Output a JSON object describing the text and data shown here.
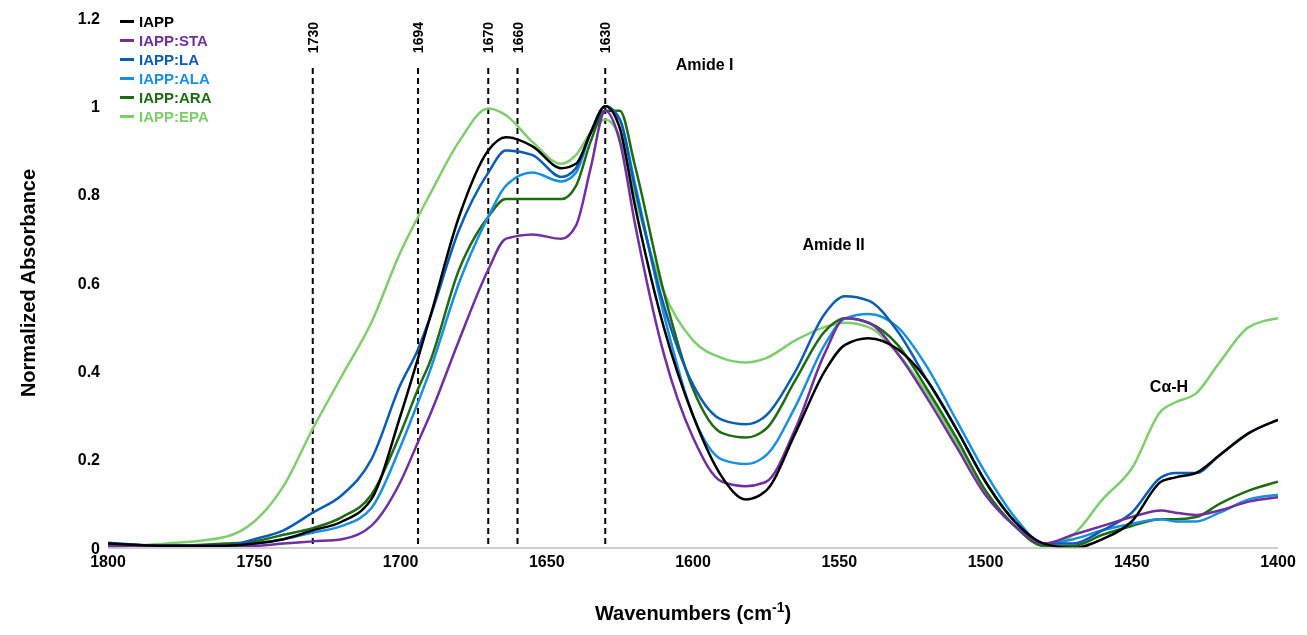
{
  "chart_data": {
    "type": "line",
    "xlabel": "Wavenumbers (cm$^{-1}$)",
    "ylabel": "Normalized Absorbance",
    "x": [
      1800,
      1780,
      1760,
      1750,
      1740,
      1730,
      1720,
      1710,
      1700,
      1694,
      1690,
      1680,
      1670,
      1664,
      1655,
      1645,
      1640,
      1635,
      1630,
      1625,
      1620,
      1610,
      1600,
      1590,
      1582,
      1575,
      1565,
      1555,
      1548,
      1540,
      1530,
      1520,
      1510,
      1500,
      1490,
      1480,
      1470,
      1460,
      1450,
      1440,
      1435,
      1428,
      1420,
      1410,
      1400
    ],
    "series": [
      {
        "name": "IAPP",
        "color": "#000000",
        "values": [
          0.01,
          0.005,
          0.005,
          0.01,
          0.02,
          0.04,
          0.06,
          0.11,
          0.3,
          0.43,
          0.52,
          0.75,
          0.9,
          0.93,
          0.91,
          0.86,
          0.87,
          0.94,
          1.0,
          0.95,
          0.78,
          0.5,
          0.3,
          0.16,
          0.11,
          0.13,
          0.26,
          0.4,
          0.46,
          0.475,
          0.45,
          0.38,
          0.27,
          0.15,
          0.06,
          0.01,
          0,
          0.02,
          0.06,
          0.15,
          0.16,
          0.17,
          0.21,
          0.26,
          0.29
        ]
      },
      {
        "name": "IAPP:STA",
        "color": "#7030a0",
        "values": [
          0.005,
          0.005,
          0.005,
          0.005,
          0.01,
          0.015,
          0.02,
          0.05,
          0.15,
          0.24,
          0.3,
          0.47,
          0.63,
          0.7,
          0.71,
          0.7,
          0.73,
          0.86,
          0.99,
          0.92,
          0.74,
          0.44,
          0.25,
          0.15,
          0.14,
          0.15,
          0.27,
          0.44,
          0.52,
          0.51,
          0.44,
          0.34,
          0.23,
          0.12,
          0.05,
          0.01,
          0.03,
          0.05,
          0.07,
          0.085,
          0.08,
          0.075,
          0.085,
          0.105,
          0.115
        ]
      },
      {
        "name": "IAPP:LA",
        "color": "#0b5cb5",
        "values": [
          0.012,
          0.005,
          0.005,
          0.02,
          0.04,
          0.08,
          0.12,
          0.2,
          0.37,
          0.45,
          0.52,
          0.72,
          0.85,
          0.9,
          0.89,
          0.84,
          0.86,
          0.94,
          1.0,
          0.97,
          0.82,
          0.55,
          0.37,
          0.29,
          0.28,
          0.3,
          0.4,
          0.53,
          0.57,
          0.56,
          0.49,
          0.38,
          0.27,
          0.15,
          0.06,
          0.01,
          0.01,
          0.04,
          0.08,
          0.16,
          0.17,
          0.17,
          0.21,
          0.26,
          0.29
        ]
      },
      {
        "name": "IAPP:ALA",
        "color": "#1a8fe0",
        "values": [
          0.01,
          0.005,
          0.005,
          0.01,
          0.02,
          0.035,
          0.05,
          0.09,
          0.23,
          0.33,
          0.4,
          0.6,
          0.75,
          0.82,
          0.85,
          0.83,
          0.85,
          0.94,
          1.0,
          0.97,
          0.83,
          0.53,
          0.3,
          0.2,
          0.19,
          0.21,
          0.32,
          0.46,
          0.52,
          0.53,
          0.5,
          0.41,
          0.29,
          0.17,
          0.07,
          0.01,
          0.02,
          0.04,
          0.055,
          0.065,
          0.06,
          0.06,
          0.08,
          0.11,
          0.12
        ]
      },
      {
        "name": "IAPP:ARA",
        "color": "#1e6b14",
        "values": [
          0.005,
          0.005,
          0.01,
          0.015,
          0.03,
          0.045,
          0.07,
          0.12,
          0.26,
          0.36,
          0.42,
          0.63,
          0.75,
          0.79,
          0.79,
          0.79,
          0.82,
          0.92,
          0.99,
          0.99,
          0.87,
          0.58,
          0.36,
          0.26,
          0.25,
          0.27,
          0.38,
          0.49,
          0.52,
          0.51,
          0.46,
          0.36,
          0.25,
          0.13,
          0.05,
          0.005,
          0.005,
          0.03,
          0.05,
          0.065,
          0.065,
          0.07,
          0.1,
          0.13,
          0.15
        ]
      },
      {
        "name": "IAPP:EPA",
        "color": "#7ccf6a",
        "values": [
          0.002,
          0.01,
          0.025,
          0.06,
          0.14,
          0.27,
          0.39,
          0.51,
          0.67,
          0.75,
          0.8,
          0.92,
          0.995,
          0.98,
          0.92,
          0.87,
          0.89,
          0.94,
          0.97,
          0.93,
          0.8,
          0.58,
          0.47,
          0.43,
          0.42,
          0.43,
          0.47,
          0.5,
          0.51,
          0.5,
          0.44,
          0.35,
          0.24,
          0.13,
          0.05,
          0.005,
          0.03,
          0.11,
          0.18,
          0.31,
          0.33,
          0.35,
          0.42,
          0.5,
          0.52
        ]
      }
    ],
    "xlim": [
      1800,
      1400
    ],
    "xticks": [
      1800,
      1750,
      1700,
      1650,
      1600,
      1550,
      1500,
      1450,
      1400
    ],
    "ylim": [
      0,
      1.2
    ],
    "yticks": [
      0,
      0.2,
      0.4,
      0.6,
      0.8,
      1,
      1.2
    ],
    "ref_lines": [
      {
        "axis": "x",
        "value": 1730,
        "label": "1730",
        "color": "#000000",
        "line_style": "dashed"
      },
      {
        "axis": "x",
        "value": 1694,
        "label": "1694",
        "color": "#000000",
        "line_style": "dashed"
      },
      {
        "axis": "x",
        "value": 1670,
        "label": "1670",
        "color": "#000000",
        "line_style": "dashed"
      },
      {
        "axis": "x",
        "value": 1660,
        "label": "1660",
        "color": "#000000",
        "line_style": "dashed"
      },
      {
        "axis": "x",
        "value": 1630,
        "label": "1630",
        "color": "#000000",
        "line_style": "dashed"
      }
    ],
    "annotations": [
      "Amide I",
      "Amide II",
      "Cα-H"
    ],
    "grid": false,
    "legend": "top left",
    "marker": "none",
    "line_style": "solid"
  }
}
